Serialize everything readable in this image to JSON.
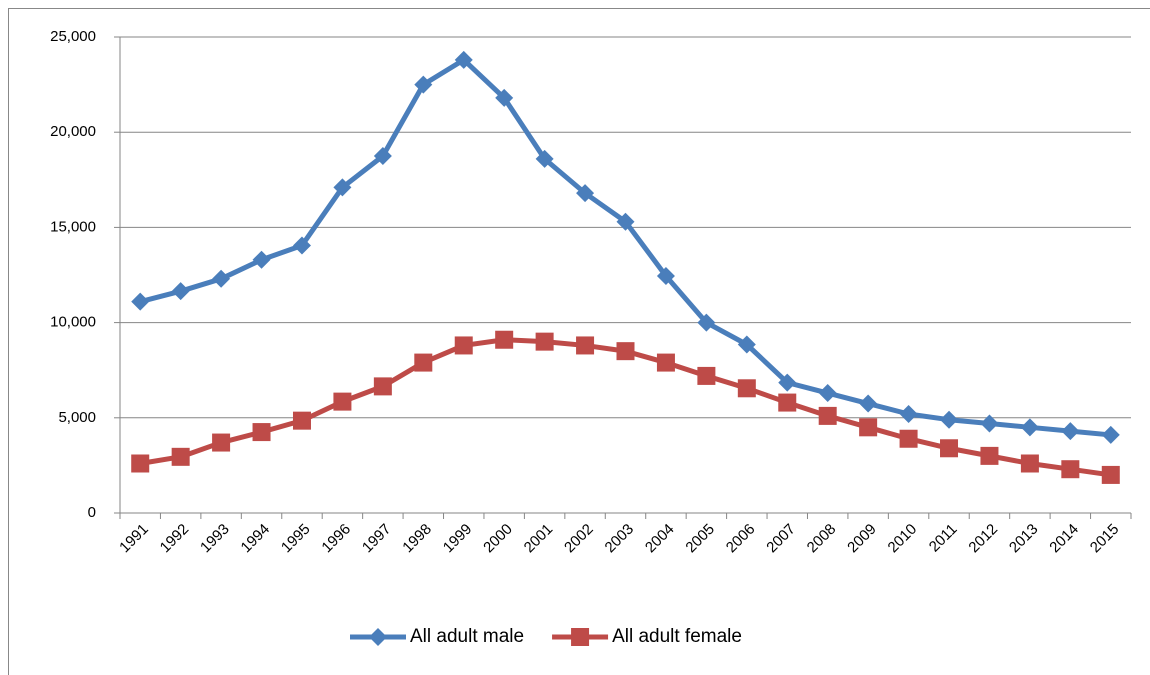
{
  "chart_data": {
    "type": "line",
    "categories": [
      "1991",
      "1992",
      "1993",
      "1994",
      "1995",
      "1996",
      "1997",
      "1998",
      "1999",
      "2000",
      "2001",
      "2002",
      "2003",
      "2004",
      "2005",
      "2006",
      "2007",
      "2008",
      "2009",
      "2010",
      "2011",
      "2012",
      "2013",
      "2014",
      "2015"
    ],
    "series": [
      {
        "name": "All adult male",
        "color": "#4a7ebb",
        "marker": "diamond",
        "values": [
          11100,
          11650,
          12300,
          13300,
          14050,
          17100,
          18750,
          22500,
          23800,
          21800,
          18600,
          16800,
          15300,
          12450,
          10000,
          8850,
          6850,
          6300,
          5750,
          5200,
          4900,
          4700,
          4500,
          4300,
          4100
        ]
      },
      {
        "name": "All adult female",
        "color": "#be4b48",
        "marker": "square",
        "values": [
          2600,
          2950,
          3700,
          4250,
          4850,
          5850,
          6650,
          7900,
          8800,
          9100,
          9000,
          8800,
          8500,
          7900,
          7200,
          6550,
          5800,
          5100,
          4500,
          3900,
          3400,
          3000,
          2600,
          2300,
          2000
        ]
      }
    ],
    "ylim": [
      0,
      25000
    ],
    "yticks": [
      0,
      {
        "value": 5000,
        "label": "5,000"
      },
      {
        "value": 10000,
        "label": "10,000"
      },
      {
        "value": 15000,
        "label": "15,000"
      },
      {
        "value": 20000,
        "label": "20,000"
      },
      {
        "value": 25000,
        "label": "25,000"
      }
    ],
    "grid": true,
    "legend": "bottom"
  }
}
